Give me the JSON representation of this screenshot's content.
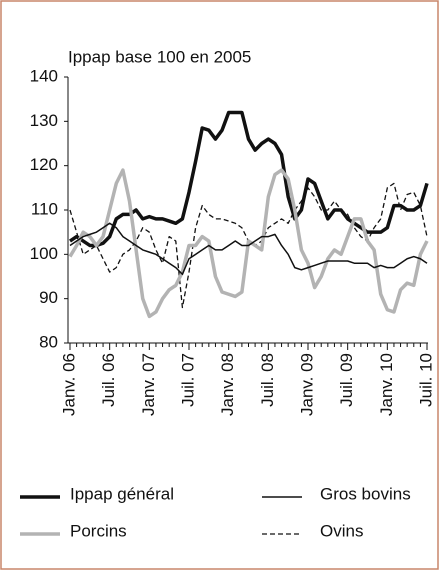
{
  "chart_data": {
    "type": "line",
    "title": "Ippap base 100 en 2005",
    "categories": [
      "Janv. 06",
      null,
      null,
      null,
      null,
      null,
      "Juil. 06",
      null,
      null,
      null,
      null,
      null,
      "Janv. 07",
      null,
      null,
      null,
      null,
      null,
      "Juil. 07",
      null,
      null,
      null,
      null,
      null,
      "Janv. 08",
      null,
      null,
      null,
      null,
      null,
      "Juil. 08",
      null,
      null,
      null,
      null,
      null,
      "Janv. 09",
      null,
      null,
      null,
      null,
      null,
      "Juil. 09",
      null,
      null,
      null,
      null,
      null,
      "Janv. 10",
      null,
      null,
      null,
      null,
      null,
      "Juil. 10"
    ],
    "series": [
      {
        "name": "Ippap général",
        "color": "#111111",
        "width": 3.5,
        "dash": "none",
        "values": [
          103,
          104,
          103,
          102,
          102,
          102.5,
          104,
          108,
          109,
          109,
          110,
          108,
          108.5,
          108,
          108,
          107.5,
          107,
          108,
          114,
          121,
          128.5,
          128,
          126,
          128,
          132,
          132,
          132,
          126,
          123.5,
          125,
          126,
          125,
          122.5,
          113,
          108,
          110,
          117,
          116,
          112,
          108,
          110,
          110,
          108,
          107,
          106,
          105,
          105,
          105,
          106,
          111,
          111,
          110,
          110,
          111,
          116
        ]
      },
      {
        "name": "Gros bovins",
        "color": "#111111",
        "width": 1.5,
        "dash": "none",
        "values": [
          102,
          103,
          104,
          104.5,
          105,
          106,
          107,
          106,
          104,
          103,
          102,
          101,
          100.5,
          100,
          99,
          98,
          97,
          95.5,
          99,
          100,
          101,
          102,
          101,
          101,
          102,
          103,
          102,
          102,
          103,
          104,
          104,
          104.5,
          102,
          100,
          97,
          96.5,
          97,
          97.5,
          98,
          98.5,
          98.5,
          98.5,
          98.5,
          98,
          98,
          98,
          97,
          97.5,
          97,
          97,
          98,
          99,
          99.5,
          99,
          98
        ]
      },
      {
        "name": "Porcins",
        "color": "#b3b3b3",
        "width": 3.5,
        "dash": "none",
        "values": [
          99.5,
          102,
          105,
          104,
          102,
          104,
          110,
          116,
          119,
          112,
          101,
          90,
          86,
          87,
          90,
          92,
          93,
          96,
          102,
          102,
          104,
          103,
          95,
          91.5,
          91,
          90.5,
          91.5,
          103,
          102,
          101,
          113,
          118,
          119,
          117,
          110,
          101,
          98,
          92.5,
          95,
          99,
          101,
          100,
          104,
          108,
          108,
          103,
          101,
          91,
          87.5,
          87,
          92,
          93.5,
          93,
          100,
          103
        ]
      },
      {
        "name": "Ovins",
        "color": "#111111",
        "width": 1.3,
        "dash": "5 3",
        "values": [
          110,
          105,
          100,
          101,
          102,
          99,
          96,
          97,
          100,
          101,
          103,
          106,
          105,
          101,
          98,
          104,
          103,
          88,
          96,
          106,
          111,
          109,
          108,
          108,
          107.5,
          107,
          106,
          103,
          102,
          103,
          106,
          107,
          108,
          107,
          110,
          112,
          115,
          113,
          110,
          110,
          112,
          110,
          109,
          106,
          104,
          103,
          106,
          108,
          115,
          116,
          110,
          113.5,
          114,
          111,
          104
        ]
      }
    ],
    "ylim": [
      80,
      140
    ],
    "yticks": [
      80,
      90,
      100,
      110,
      120,
      130,
      140
    ]
  }
}
